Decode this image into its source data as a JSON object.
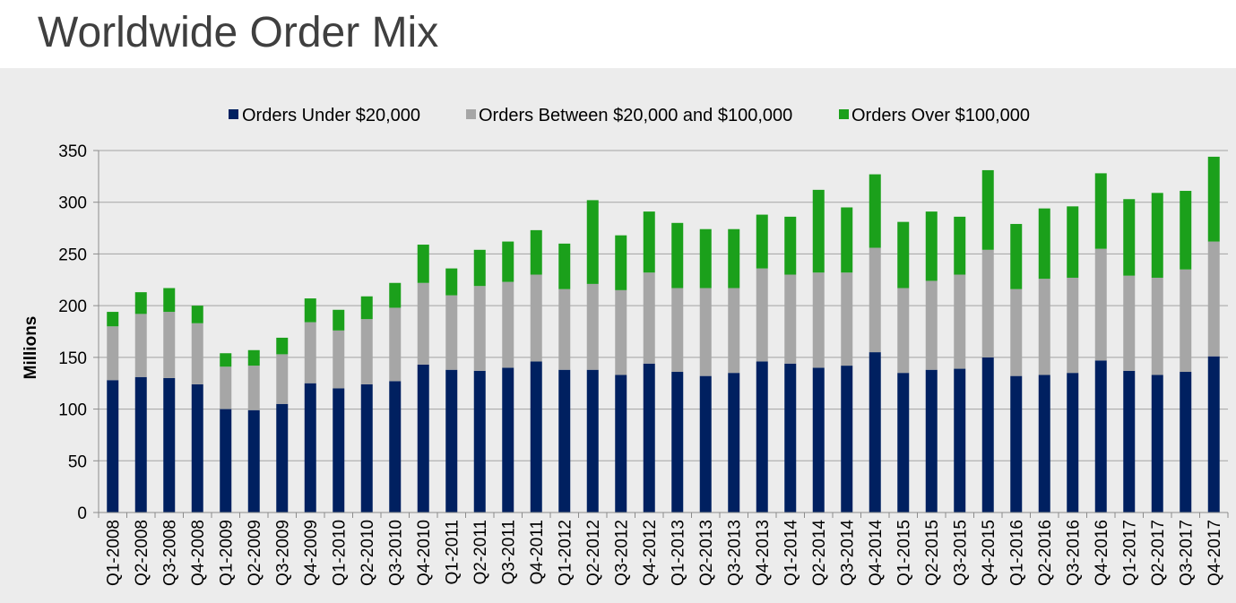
{
  "chart_data": {
    "type": "bar",
    "stacked": true,
    "title": "Worldwide Order Mix",
    "ylabel": "Millions",
    "ylim": [
      0,
      350
    ],
    "yticks": [
      0,
      50,
      100,
      150,
      200,
      250,
      300,
      350
    ],
    "grid": true,
    "legend": "top",
    "categories": [
      "Q1-2008",
      "Q2-2008",
      "Q3-2008",
      "Q4-2008",
      "Q1-2009",
      "Q2-2009",
      "Q3-2009",
      "Q4-2009",
      "Q1-2010",
      "Q2-2010",
      "Q3-2010",
      "Q4-2010",
      "Q1-2011",
      "Q2-2011",
      "Q3-2011",
      "Q4-2011",
      "Q1-2012",
      "Q2-2012",
      "Q3-2012",
      "Q4-2012",
      "Q1-2013",
      "Q2-2013",
      "Q3-2013",
      "Q4-2013",
      "Q1-2014",
      "Q2-2014",
      "Q3-2014",
      "Q4-2014",
      "Q1-2015",
      "Q2-2015",
      "Q3-2015",
      "Q4-2015",
      "Q1-2016",
      "Q2-2016",
      "Q3-2016",
      "Q4-2016",
      "Q1-2017",
      "Q2-2017",
      "Q3-2017",
      "Q4-2017"
    ],
    "series": [
      {
        "name": "Orders Under $20,000",
        "color": "#002060",
        "values": [
          128,
          131,
          130,
          124,
          100,
          99,
          105,
          125,
          120,
          124,
          127,
          143,
          138,
          137,
          140,
          146,
          138,
          138,
          133,
          144,
          136,
          132,
          135,
          146,
          144,
          140,
          142,
          155,
          135,
          138,
          139,
          150,
          132,
          133,
          135,
          147,
          137,
          133,
          136,
          151
        ]
      },
      {
        "name": "Orders Between $20,000 and $100,000",
        "color": "#a6a6a6",
        "values": [
          52,
          61,
          64,
          59,
          41,
          43,
          48,
          59,
          56,
          63,
          71,
          79,
          72,
          82,
          83,
          84,
          78,
          83,
          82,
          88,
          81,
          85,
          82,
          90,
          86,
          92,
          90,
          101,
          82,
          86,
          91,
          104,
          84,
          93,
          92,
          108,
          92,
          94,
          99,
          111
        ]
      },
      {
        "name": "Orders Over $100,000",
        "color": "#1ba01b",
        "values": [
          14,
          21,
          23,
          17,
          13,
          15,
          16,
          23,
          20,
          22,
          24,
          37,
          26,
          35,
          39,
          43,
          44,
          81,
          53,
          59,
          63,
          57,
          57,
          52,
          56,
          80,
          63,
          71,
          64,
          67,
          56,
          77,
          63,
          68,
          69,
          73,
          74,
          82,
          76,
          82
        ]
      }
    ]
  }
}
